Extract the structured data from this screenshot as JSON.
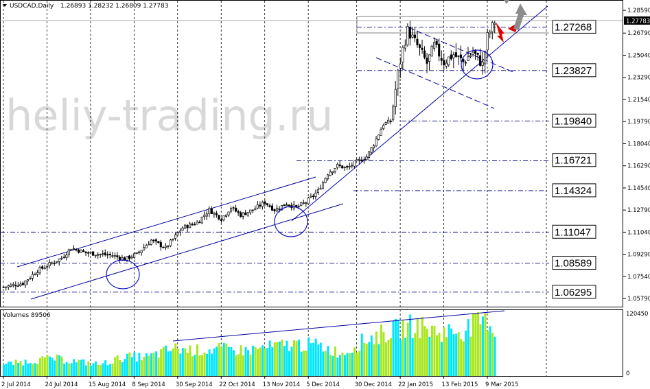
{
  "header": {
    "symbol": "USDCAD,Daily",
    "ohlc": "1.26893 1.28232 1.26809 1.27783",
    "dropdown_icon": "triangle-down-icon"
  },
  "watermark": "heliy-trading.ru",
  "volume_label": "Volumes 89506",
  "colors": {
    "candle": "#000000",
    "trend_line": "#0000a0",
    "level_line": "#000080",
    "circle": "#1010c0",
    "volume_up": "#00e5ff",
    "volume_down": "#a8e61d",
    "arrow_down": "#e00000",
    "arrow_up": "#8c8c8c",
    "current_price_bg": "#000000"
  },
  "chart_data": {
    "type": "candlestick",
    "price_axis": {
      "ticks": [
        "1.28590",
        "1.26790",
        "1.25040",
        "1.23290",
        "1.21540",
        "1.19790",
        "1.18040",
        "1.16290",
        "1.14540",
        "1.12790",
        "1.11040",
        "1.09290",
        "1.07540",
        "1.05790"
      ],
      "current_price": "1.27783",
      "ylim": [
        1.052,
        1.293
      ]
    },
    "volume_axis": {
      "ticks": [
        "120450",
        "0"
      ],
      "ylim": [
        0,
        120450
      ]
    },
    "x_ticks": [
      "2 Jul 2014",
      "24 Jul 2014",
      "15 Aug 2014",
      "8 Sep 2014",
      "30 Sep 2014",
      "22 Oct 2014",
      "13 Nov 2014",
      "5 Dec 2014",
      "30 Dec 2014",
      "22 Jan 2015",
      "13 Feb 2015",
      "9 Mar 2015"
    ],
    "levels": [
      "1.27268",
      "1.23827",
      "1.19840",
      "1.16721",
      "1.14324",
      "1.11047",
      "1.08589",
      "1.06295"
    ],
    "close_path": [
      [
        0,
        1.067
      ],
      [
        8,
        1.07
      ],
      [
        14,
        1.08
      ],
      [
        20,
        1.086
      ],
      [
        24,
        1.09
      ],
      [
        28,
        1.098
      ],
      [
        34,
        1.094
      ],
      [
        40,
        1.093
      ],
      [
        45,
        1.092
      ],
      [
        50,
        1.089
      ],
      [
        55,
        1.093
      ],
      [
        61,
        1.104
      ],
      [
        67,
        1.098
      ],
      [
        74,
        1.114
      ],
      [
        80,
        1.118
      ],
      [
        85,
        1.128
      ],
      [
        90,
        1.121
      ],
      [
        94,
        1.13
      ],
      [
        98,
        1.124
      ],
      [
        103,
        1.128
      ],
      [
        108,
        1.134
      ],
      [
        112,
        1.128
      ],
      [
        117,
        1.133
      ],
      [
        121,
        1.13
      ],
      [
        125,
        1.134
      ],
      [
        130,
        1.143
      ],
      [
        134,
        1.157
      ],
      [
        138,
        1.163
      ],
      [
        142,
        1.161
      ],
      [
        145,
        1.165
      ],
      [
        150,
        1.17
      ],
      [
        153,
        1.18
      ],
      [
        157,
        1.196
      ],
      [
        160,
        1.198
      ],
      [
        163,
        1.236
      ],
      [
        165,
        1.255
      ],
      [
        167,
        1.27
      ],
      [
        171,
        1.258
      ],
      [
        175,
        1.244
      ],
      [
        178,
        1.258
      ],
      [
        182,
        1.245
      ],
      [
        186,
        1.251
      ],
      [
        190,
        1.245
      ],
      [
        194,
        1.253
      ],
      [
        198,
        1.243
      ],
      [
        200,
        1.265
      ],
      [
        203,
        1.277
      ]
    ],
    "volumes": [
      [
        0,
        0.18
      ],
      [
        20,
        0.28
      ],
      [
        40,
        0.18
      ],
      [
        50,
        0.3
      ],
      [
        60,
        0.3
      ],
      [
        70,
        0.43
      ],
      [
        80,
        0.4
      ],
      [
        90,
        0.42
      ],
      [
        100,
        0.4
      ],
      [
        110,
        0.45
      ],
      [
        120,
        0.5
      ],
      [
        130,
        0.48
      ],
      [
        140,
        0.35
      ],
      [
        150,
        0.58
      ],
      [
        160,
        0.7
      ],
      [
        170,
        0.8
      ],
      [
        180,
        0.68
      ],
      [
        190,
        0.72
      ],
      [
        200,
        0.9
      ],
      [
        203,
        0.7
      ]
    ],
    "bars_count": 204
  }
}
